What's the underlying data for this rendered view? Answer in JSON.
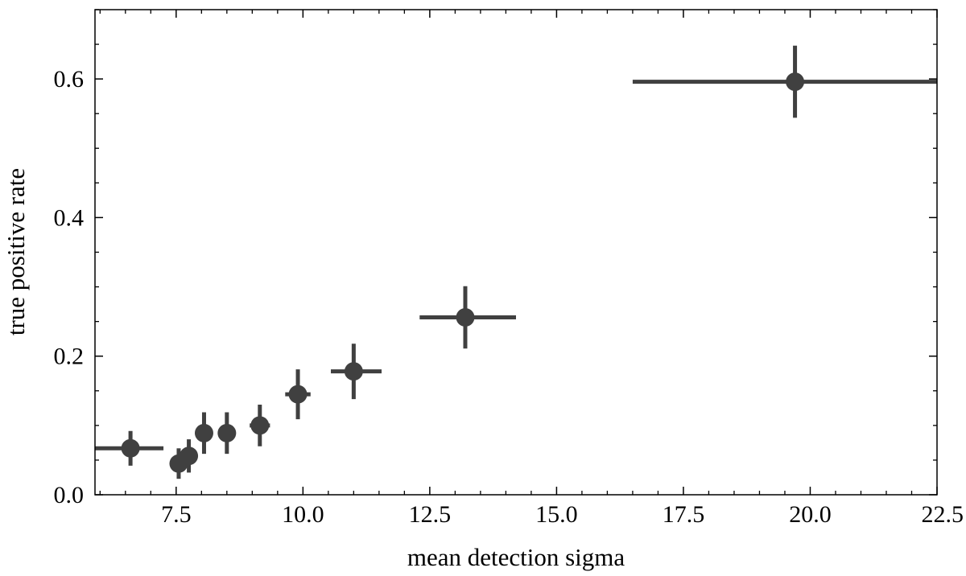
{
  "chart_data": {
    "type": "scatter",
    "title": "",
    "xlabel": "mean detection sigma",
    "ylabel": "true positive rate",
    "xlim": [
      5.9,
      22.5
    ],
    "ylim": [
      0.0,
      0.7
    ],
    "x_major_ticks": [
      7.5,
      10.0,
      12.5,
      15.0,
      17.5,
      20.0,
      22.5
    ],
    "x_tick_labels": [
      "7.5",
      "10.0",
      "12.5",
      "15.0",
      "17.5",
      "20.0",
      "22.5"
    ],
    "y_major_ticks": [
      0.0,
      0.2,
      0.4,
      0.6
    ],
    "y_tick_labels": [
      "0.0",
      "0.2",
      "0.4",
      "0.6"
    ],
    "x_minor_step": 0.5,
    "y_minor_step": 0.05,
    "grid": false,
    "legend": "none",
    "marker_color": "#404040",
    "points": [
      {
        "x": 6.6,
        "y": 0.067,
        "xerr_low": 0.7,
        "xerr_high": 0.65,
        "yerr": 0.025
      },
      {
        "x": 7.55,
        "y": 0.045,
        "xerr_low": 0.0,
        "xerr_high": 0.0,
        "yerr": 0.022
      },
      {
        "x": 7.75,
        "y": 0.056,
        "xerr_low": 0.0,
        "xerr_high": 0.0,
        "yerr": 0.024
      },
      {
        "x": 8.05,
        "y": 0.089,
        "xerr_low": 0.0,
        "xerr_high": 0.0,
        "yerr": 0.03
      },
      {
        "x": 8.5,
        "y": 0.089,
        "xerr_low": 0.0,
        "xerr_high": 0.0,
        "yerr": 0.03
      },
      {
        "x": 9.15,
        "y": 0.1,
        "xerr_low": 0.2,
        "xerr_high": 0.2,
        "yerr": 0.03
      },
      {
        "x": 9.9,
        "y": 0.145,
        "xerr_low": 0.25,
        "xerr_high": 0.25,
        "yerr": 0.036
      },
      {
        "x": 11.0,
        "y": 0.178,
        "xerr_low": 0.45,
        "xerr_high": 0.55,
        "yerr": 0.04
      },
      {
        "x": 13.2,
        "y": 0.256,
        "xerr_low": 0.9,
        "xerr_high": 1.0,
        "yerr": 0.045
      },
      {
        "x": 19.7,
        "y": 0.596,
        "xerr_low": 3.2,
        "xerr_high": 2.8,
        "yerr": 0.052
      }
    ]
  }
}
